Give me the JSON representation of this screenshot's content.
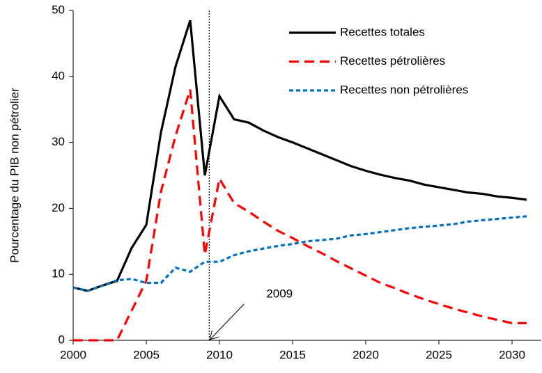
{
  "chart_data": {
    "type": "line",
    "y_label": "Pourcentage du PIB non pétrolier",
    "x": [
      2000,
      2001,
      2002,
      2003,
      2004,
      2005,
      2006,
      2007,
      2008,
      2009,
      2010,
      2011,
      2012,
      2013,
      2014,
      2015,
      2016,
      2017,
      2018,
      2019,
      2020,
      2021,
      2022,
      2023,
      2024,
      2025,
      2026,
      2027,
      2028,
      2029,
      2030,
      2031
    ],
    "series": [
      {
        "name": "Recettes totales",
        "color": "#000000",
        "dash": "solid",
        "values": [
          8,
          7.5,
          8.3,
          9,
          14,
          17.5,
          31.5,
          41.5,
          48.5,
          25,
          37,
          33.5,
          33,
          31.8,
          30.8,
          30,
          29.1,
          28.2,
          27.3,
          26.4,
          25.7,
          25.1,
          24.6,
          24.2,
          23.6,
          23.2,
          22.8,
          22.4,
          22.2,
          21.8,
          21.6,
          21.3
        ]
      },
      {
        "name": "Recettes pétrolières",
        "color": "#ff0000",
        "dash": "long",
        "values": [
          0,
          0,
          0,
          0,
          4.5,
          9,
          22.5,
          31,
          38,
          13,
          24.5,
          20.8,
          19.5,
          18,
          16.6,
          15.5,
          14.3,
          13.2,
          12,
          10.9,
          9.8,
          8.7,
          7.9,
          7,
          6.2,
          5.5,
          4.8,
          4.2,
          3.6,
          3.1,
          2.6,
          2.6
        ]
      },
      {
        "name": "Recettes non pétrolières",
        "color": "#0070c0",
        "dash": "short",
        "values": [
          8,
          7.5,
          8.3,
          9.1,
          9.3,
          8.7,
          8.7,
          11,
          10.4,
          11.9,
          11.9,
          12.9,
          13.5,
          13.9,
          14.3,
          14.6,
          15,
          15.2,
          15.4,
          15.9,
          16.1,
          16.4,
          16.7,
          17,
          17.2,
          17.4,
          17.6,
          18,
          18.2,
          18.4,
          18.6,
          18.8
        ]
      }
    ],
    "annotation": {
      "text": "2009",
      "x": 2009.3
    },
    "xlim": [
      2000,
      2032
    ],
    "ylim": [
      0,
      50
    ],
    "xticks": [
      2000,
      2005,
      2010,
      2015,
      2020,
      2025,
      2030
    ],
    "yticks": [
      0,
      10,
      20,
      30,
      40,
      50
    ],
    "grid": false
  }
}
